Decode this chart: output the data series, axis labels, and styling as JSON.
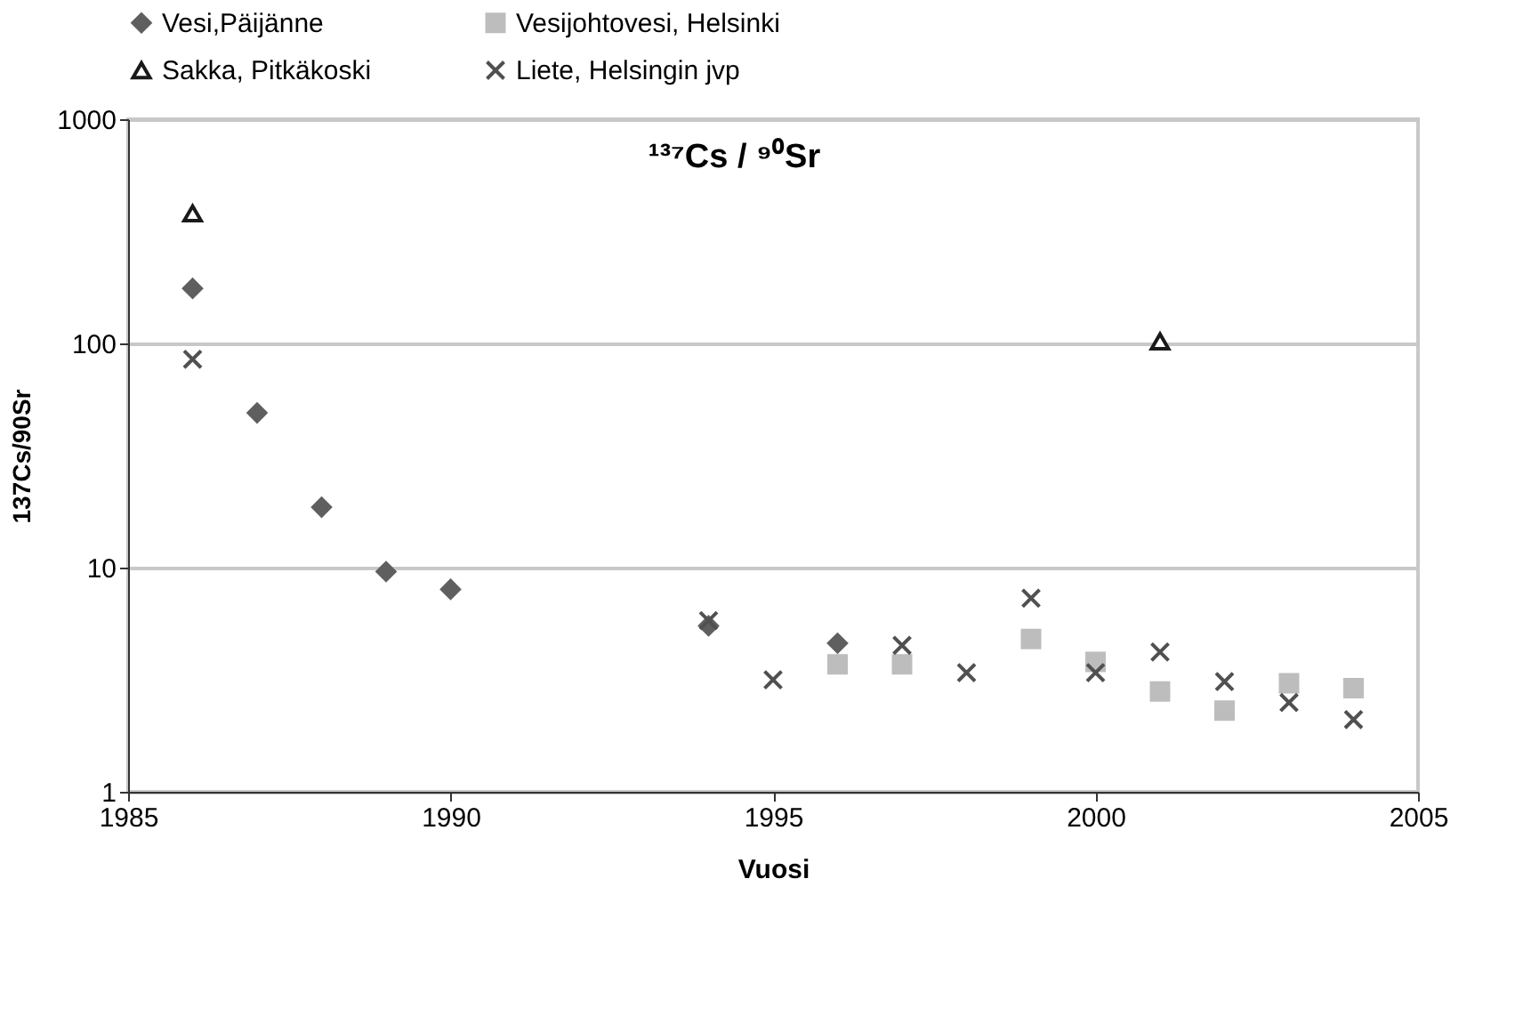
{
  "chart_data": {
    "type": "scatter",
    "title": "¹³⁷Cs / ⁹⁰Sr",
    "xlabel": "Vuosi",
    "ylabel": "137Cs/90Sr",
    "x": [
      1986,
      1987,
      1988,
      1989,
      1990,
      1994,
      1995,
      1996,
      1997,
      1998,
      1999,
      2000,
      2001,
      2002,
      2003,
      2004
    ],
    "series": [
      {
        "name": "Vesi,Päijänne",
        "color": "#5f5f5f",
        "marker": "diamond",
        "values": [
          176,
          49,
          18.6,
          9.6,
          8.0,
          5.5,
          null,
          4.6,
          null,
          null,
          null,
          null,
          null,
          null,
          null,
          null
        ]
      },
      {
        "name": "Vesijohtovesi, Helsinki",
        "color": "#bdbdbd",
        "marker": "square",
        "values": [
          null,
          null,
          null,
          null,
          null,
          null,
          null,
          3.7,
          3.7,
          null,
          4.8,
          3.8,
          2.8,
          2.3,
          3.05,
          2.9
        ]
      },
      {
        "name": "Sakka, Pitkäkoski",
        "color": "#1a1a1a",
        "marker": "triangle",
        "values": [
          380,
          null,
          null,
          null,
          null,
          null,
          null,
          null,
          null,
          null,
          null,
          null,
          102,
          null,
          null,
          null
        ]
      },
      {
        "name": "Liete, Helsingin jvp",
        "color": "#505050",
        "marker": "cross",
        "values": [
          85,
          null,
          null,
          null,
          null,
          5.8,
          3.16,
          null,
          4.5,
          3.4,
          7.3,
          3.4,
          4.2,
          3.1,
          2.5,
          2.1
        ]
      }
    ],
    "xlim": [
      1985,
      2005
    ],
    "xticks": [
      1985,
      1990,
      1995,
      2000,
      2005
    ],
    "ylim": [
      1,
      1000
    ],
    "yticks": [
      1,
      10,
      100,
      1000
    ],
    "log": "y",
    "grid": "y",
    "legend": "top"
  }
}
